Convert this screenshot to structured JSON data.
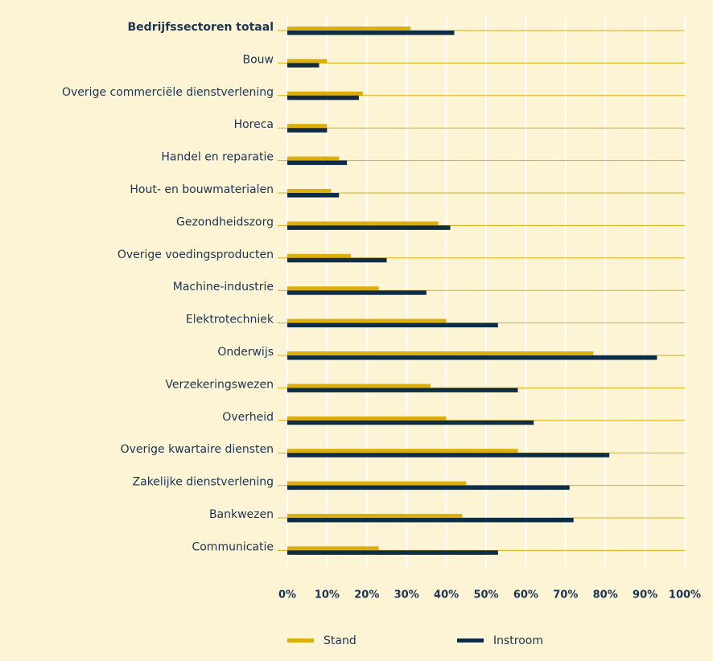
{
  "chart_data": {
    "type": "bar",
    "orientation": "horizontal",
    "categories": [
      "Bedrijfssectoren totaal",
      "Bouw",
      "Overige commerciële dienstverlening",
      "Horeca",
      "Handel en reparatie",
      "Hout- en bouwmaterialen",
      "Gezondheidszorg",
      "Overige voedingsproducten",
      "Machine-industrie",
      "Elektrotechniek",
      "Onderwijs",
      "Verzekeringswezen",
      "Overheid",
      "Overige kwartaire diensten",
      "Zakelijke dienstverlening",
      "Bankwezen",
      "Communicatie"
    ],
    "series": [
      {
        "name": "Stand",
        "color": "#dcae0c",
        "values": [
          31,
          10,
          19,
          10,
          13,
          11,
          38,
          16,
          23,
          40,
          77,
          36,
          40,
          58,
          45,
          44,
          23
        ]
      },
      {
        "name": "Instroom",
        "color": "#0e2c44",
        "values": [
          42,
          8,
          18,
          10,
          15,
          13,
          41,
          25,
          35,
          53,
          93,
          58,
          62,
          81,
          71,
          72,
          53
        ]
      }
    ],
    "xlim": [
      0,
      100
    ],
    "xticks": [
      {
        "value": 0,
        "label": "0%"
      },
      {
        "value": 10,
        "label": "10%"
      },
      {
        "value": 20,
        "label": "20%"
      },
      {
        "value": 30,
        "label": "30%"
      },
      {
        "value": 40,
        "label": "40%"
      },
      {
        "value": 50,
        "label": "50%"
      },
      {
        "value": 60,
        "label": "60%"
      },
      {
        "value": 70,
        "label": "70%"
      },
      {
        "value": 80,
        "label": "80%"
      },
      {
        "value": 90,
        "label": "90%"
      },
      {
        "value": 100,
        "label": "100%"
      }
    ],
    "grid": true,
    "legend": "bottom"
  }
}
